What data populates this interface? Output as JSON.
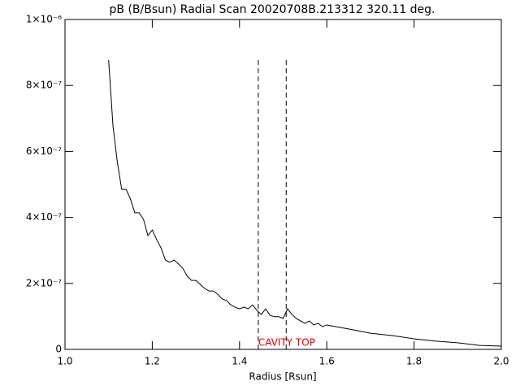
{
  "chart_data": {
    "type": "line",
    "title": "pB (B/Bsun) Radial Scan 20020708B.213312 320.11 deg.",
    "xlabel": "Radius [Rsun]",
    "xlim": [
      1.0,
      2.0
    ],
    "xticks": [
      {
        "value": 1.0,
        "label": "1.0"
      },
      1.2,
      1.4,
      1.6,
      1.8,
      {
        "value": 2.0,
        "label": "2.0"
      }
    ],
    "ylim": [
      0,
      1e-06
    ],
    "yticks": [
      0,
      {
        "value": 2e-07,
        "label": "2×10⁻⁷"
      },
      {
        "value": 4e-07,
        "label": "4×10⁻⁷"
      },
      {
        "value": 6e-07,
        "label": "6×10⁻⁷"
      },
      {
        "value": 8e-07,
        "label": "8×10⁻⁷"
      },
      {
        "value": 1e-06,
        "label": "1×10⁻⁶"
      }
    ],
    "x": [
      1.1,
      1.11,
      1.12,
      1.13,
      1.14,
      1.15,
      1.16,
      1.17,
      1.18,
      1.19,
      1.2,
      1.21,
      1.22,
      1.23,
      1.24,
      1.25,
      1.26,
      1.27,
      1.28,
      1.29,
      1.3,
      1.31,
      1.32,
      1.33,
      1.34,
      1.35,
      1.36,
      1.37,
      1.38,
      1.39,
      1.4,
      1.41,
      1.42,
      1.43,
      1.44,
      1.45,
      1.46,
      1.47,
      1.48,
      1.49,
      1.5,
      1.51,
      1.52,
      1.53,
      1.54,
      1.55,
      1.56,
      1.57,
      1.58,
      1.59,
      1.6,
      1.65,
      1.7,
      1.75,
      1.8,
      1.85,
      1.9,
      1.95,
      2.0
    ],
    "series": [
      {
        "color": "#000000",
        "values": [
          8.77e-07,
          6.77e-07,
          5.67e-07,
          4.85e-07,
          4.85e-07,
          4.56e-07,
          4.14e-07,
          4.14e-07,
          3.94e-07,
          3.45e-07,
          3.62e-07,
          3.33e-07,
          3.08e-07,
          2.71e-07,
          2.64e-07,
          2.71e-07,
          2.59e-07,
          2.46e-07,
          2.22e-07,
          2.09e-07,
          2.09e-07,
          1.97e-07,
          1.85e-07,
          1.77e-07,
          1.77e-07,
          1.67e-07,
          1.53e-07,
          1.48e-07,
          1.35e-07,
          1.28e-07,
          1.23e-07,
          1.28e-07,
          1.23e-07,
          1.35e-07,
          1.18e-07,
          1.06e-07,
          1.23e-07,
          1.03e-07,
          9.9e-08,
          9.9e-08,
          9.4e-08,
          1.23e-07,
          1.06e-07,
          9.4e-08,
          8.6e-08,
          7.9e-08,
          8.6e-08,
          7.4e-08,
          7.9e-08,
          6.9e-08,
          7.4e-08,
          6.2e-08,
          4.9e-08,
          4.2e-08,
          3.2e-08,
          2.5e-08,
          2e-08,
          1.2e-08,
          1e-08
        ]
      }
    ],
    "vlines": [
      1.443,
      1.507
    ],
    "annotation": {
      "text": "CAVITY TOP",
      "color": "#e00000"
    }
  }
}
